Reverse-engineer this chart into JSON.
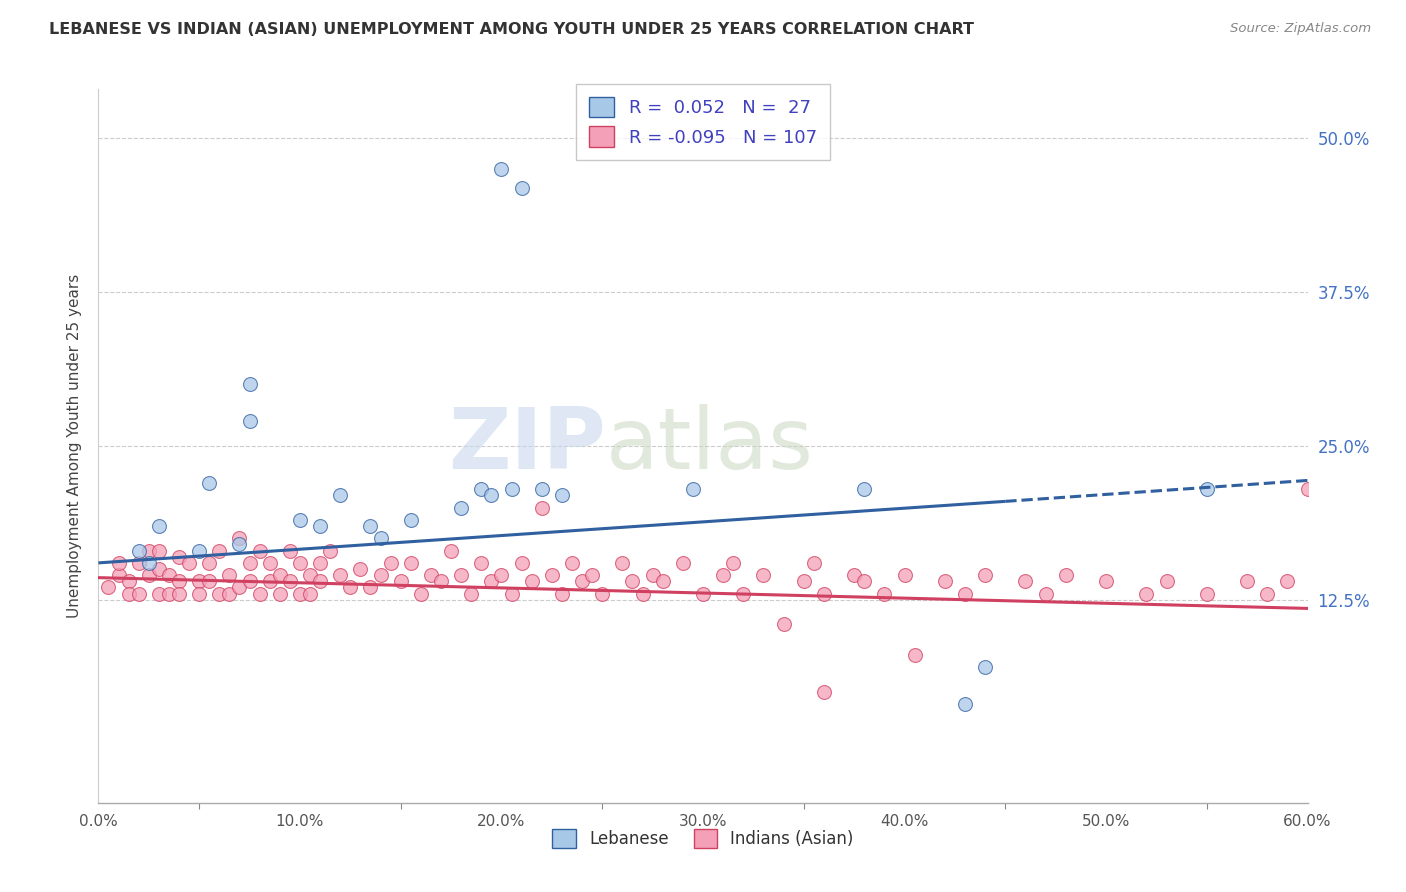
{
  "title": "LEBANESE VS INDIAN (ASIAN) UNEMPLOYMENT AMONG YOUTH UNDER 25 YEARS CORRELATION CHART",
  "source": "Source: ZipAtlas.com",
  "ylabel": "Unemployment Among Youth under 25 years",
  "xlim": [
    0.0,
    0.6
  ],
  "ylim": [
    -0.04,
    0.54
  ],
  "xtick_labels": [
    "0.0%",
    "",
    "10.0%",
    "",
    "20.0%",
    "",
    "30.0%",
    "",
    "40.0%",
    "",
    "50.0%",
    "",
    "60.0%"
  ],
  "xtick_vals": [
    0.0,
    0.05,
    0.1,
    0.15,
    0.2,
    0.25,
    0.3,
    0.35,
    0.4,
    0.45,
    0.5,
    0.55,
    0.6
  ],
  "ytick_labels": [
    "12.5%",
    "25.0%",
    "37.5%",
    "50.0%"
  ],
  "ytick_vals": [
    0.125,
    0.25,
    0.375,
    0.5
  ],
  "legend_blue_label": "Lebanese",
  "legend_pink_label": "Indians (Asian)",
  "blue_R": "0.052",
  "blue_N": "27",
  "pink_R": "-0.095",
  "pink_N": "107",
  "blue_color": "#A8C8E8",
  "pink_color": "#F4A0B8",
  "trendline_blue_color": "#3060A0",
  "trendline_pink_color": "#D04060",
  "watermark_zip": "ZIP",
  "watermark_atlas": "atlas",
  "blue_trendline_x0": 0.0,
  "blue_trendline_y0": 0.155,
  "blue_trendline_x1": 0.45,
  "blue_trendline_y1": 0.205,
  "blue_trendline_dash_x0": 0.45,
  "blue_trendline_dash_y0": 0.205,
  "blue_trendline_dash_x1": 0.6,
  "blue_trendline_dash_y1": 0.222,
  "pink_trendline_x0": 0.0,
  "pink_trendline_y0": 0.143,
  "pink_trendline_x1": 0.6,
  "pink_trendline_y1": 0.118,
  "blue_scatter_x": [
    0.02,
    0.025,
    0.03,
    0.05,
    0.055,
    0.07,
    0.075,
    0.075,
    0.1,
    0.11,
    0.12,
    0.135,
    0.14,
    0.155,
    0.18,
    0.19,
    0.2,
    0.21,
    0.22,
    0.23,
    0.205,
    0.195,
    0.295,
    0.38,
    0.55,
    0.43,
    0.44
  ],
  "blue_scatter_y": [
    0.165,
    0.155,
    0.185,
    0.165,
    0.22,
    0.17,
    0.27,
    0.3,
    0.19,
    0.185,
    0.21,
    0.185,
    0.175,
    0.19,
    0.2,
    0.215,
    0.475,
    0.46,
    0.215,
    0.21,
    0.215,
    0.21,
    0.215,
    0.215,
    0.215,
    0.04,
    0.07
  ],
  "pink_scatter_x": [
    0.005,
    0.01,
    0.01,
    0.015,
    0.015,
    0.02,
    0.02,
    0.025,
    0.025,
    0.03,
    0.03,
    0.03,
    0.035,
    0.035,
    0.04,
    0.04,
    0.04,
    0.045,
    0.05,
    0.05,
    0.055,
    0.055,
    0.06,
    0.06,
    0.065,
    0.065,
    0.07,
    0.07,
    0.075,
    0.075,
    0.08,
    0.08,
    0.085,
    0.085,
    0.09,
    0.09,
    0.095,
    0.095,
    0.1,
    0.1,
    0.105,
    0.105,
    0.11,
    0.11,
    0.115,
    0.12,
    0.125,
    0.13,
    0.135,
    0.14,
    0.145,
    0.15,
    0.155,
    0.16,
    0.165,
    0.17,
    0.175,
    0.18,
    0.185,
    0.19,
    0.195,
    0.2,
    0.205,
    0.21,
    0.215,
    0.22,
    0.225,
    0.23,
    0.235,
    0.24,
    0.245,
    0.25,
    0.26,
    0.265,
    0.27,
    0.275,
    0.28,
    0.29,
    0.3,
    0.31,
    0.315,
    0.32,
    0.33,
    0.34,
    0.35,
    0.355,
    0.36,
    0.375,
    0.38,
    0.39,
    0.4,
    0.405,
    0.42,
    0.43,
    0.44,
    0.46,
    0.47,
    0.48,
    0.5,
    0.52,
    0.53,
    0.55,
    0.57,
    0.58,
    0.59,
    0.6,
    0.36
  ],
  "pink_scatter_y": [
    0.135,
    0.145,
    0.155,
    0.14,
    0.13,
    0.155,
    0.13,
    0.165,
    0.145,
    0.13,
    0.15,
    0.165,
    0.145,
    0.13,
    0.14,
    0.16,
    0.13,
    0.155,
    0.14,
    0.13,
    0.155,
    0.14,
    0.165,
    0.13,
    0.145,
    0.13,
    0.175,
    0.135,
    0.155,
    0.14,
    0.165,
    0.13,
    0.155,
    0.14,
    0.145,
    0.13,
    0.165,
    0.14,
    0.155,
    0.13,
    0.145,
    0.13,
    0.155,
    0.14,
    0.165,
    0.145,
    0.135,
    0.15,
    0.135,
    0.145,
    0.155,
    0.14,
    0.155,
    0.13,
    0.145,
    0.14,
    0.165,
    0.145,
    0.13,
    0.155,
    0.14,
    0.145,
    0.13,
    0.155,
    0.14,
    0.2,
    0.145,
    0.13,
    0.155,
    0.14,
    0.145,
    0.13,
    0.155,
    0.14,
    0.13,
    0.145,
    0.14,
    0.155,
    0.13,
    0.145,
    0.155,
    0.13,
    0.145,
    0.105,
    0.14,
    0.155,
    0.13,
    0.145,
    0.14,
    0.13,
    0.145,
    0.08,
    0.14,
    0.13,
    0.145,
    0.14,
    0.13,
    0.145,
    0.14,
    0.13,
    0.14,
    0.13,
    0.14,
    0.13,
    0.14,
    0.215,
    0.05
  ]
}
